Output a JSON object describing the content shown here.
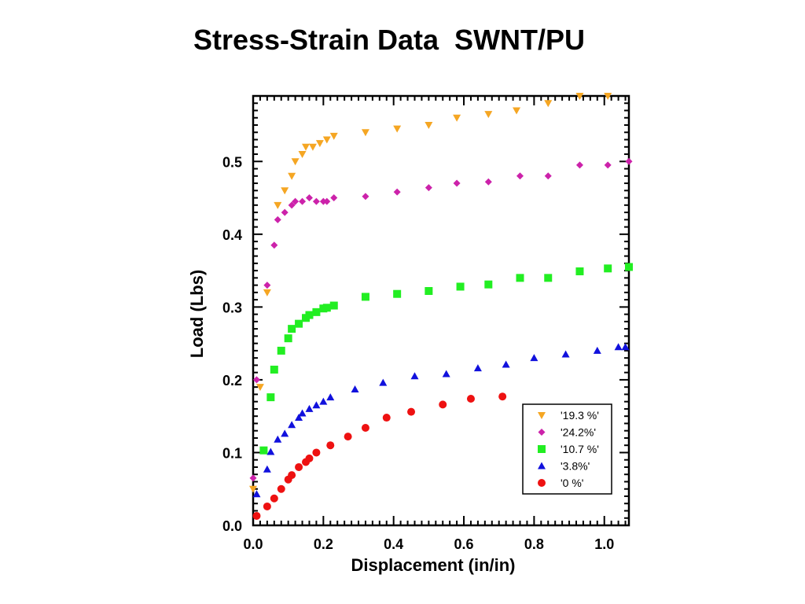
{
  "chart_data": {
    "type": "scatter",
    "title": "Stress-Strain Data  SWNT/PU",
    "xlabel": "Displacement (in/in)",
    "ylabel": "Load (Lbs)",
    "xlim": [
      0.0,
      1.07
    ],
    "ylim": [
      0.0,
      0.59
    ],
    "xticks": [
      "0.0",
      "0.2",
      "0.4",
      "0.6",
      "0.8",
      "1.0"
    ],
    "xtick_values": [
      0.0,
      0.2,
      0.4,
      0.6,
      0.8,
      1.0
    ],
    "yticks": [
      "0.0",
      "0.1",
      "0.2",
      "0.3",
      "0.4",
      "0.5"
    ],
    "ytick_values": [
      0.0,
      0.1,
      0.2,
      0.3,
      0.4,
      0.5
    ],
    "grid": false,
    "legend_position": "bottom-right",
    "series": [
      {
        "name": "'19.3 %'",
        "marker": "triangle-down",
        "color": "#f5a623",
        "points": [
          [
            0.0,
            0.05
          ],
          [
            0.02,
            0.19
          ],
          [
            0.04,
            0.32
          ],
          [
            0.07,
            0.44
          ],
          [
            0.09,
            0.46
          ],
          [
            0.11,
            0.48
          ],
          [
            0.12,
            0.5
          ],
          [
            0.14,
            0.51
          ],
          [
            0.15,
            0.52
          ],
          [
            0.17,
            0.52
          ],
          [
            0.19,
            0.525
          ],
          [
            0.21,
            0.53
          ],
          [
            0.23,
            0.535
          ],
          [
            0.32,
            0.54
          ],
          [
            0.41,
            0.545
          ],
          [
            0.5,
            0.55
          ],
          [
            0.58,
            0.56
          ],
          [
            0.67,
            0.565
          ],
          [
            0.75,
            0.57
          ],
          [
            0.84,
            0.58
          ],
          [
            0.93,
            0.59
          ],
          [
            1.01,
            0.59
          ]
        ]
      },
      {
        "name": "'24.2%'",
        "marker": "diamond",
        "color": "#cc22aa",
        "points": [
          [
            0.0,
            0.065
          ],
          [
            0.01,
            0.2
          ],
          [
            0.04,
            0.33
          ],
          [
            0.06,
            0.385
          ],
          [
            0.07,
            0.42
          ],
          [
            0.09,
            0.43
          ],
          [
            0.11,
            0.44
          ],
          [
            0.12,
            0.445
          ],
          [
            0.14,
            0.445
          ],
          [
            0.16,
            0.45
          ],
          [
            0.18,
            0.445
          ],
          [
            0.2,
            0.445
          ],
          [
            0.21,
            0.445
          ],
          [
            0.23,
            0.45
          ],
          [
            0.32,
            0.452
          ],
          [
            0.41,
            0.458
          ],
          [
            0.5,
            0.464
          ],
          [
            0.58,
            0.47
          ],
          [
            0.67,
            0.472
          ],
          [
            0.76,
            0.48
          ],
          [
            0.84,
            0.48
          ],
          [
            0.93,
            0.495
          ],
          [
            1.01,
            0.495
          ],
          [
            1.07,
            0.5
          ]
        ]
      },
      {
        "name": "'10.7 %'",
        "marker": "square",
        "color": "#22ee22",
        "points": [
          [
            0.03,
            0.103
          ],
          [
            0.05,
            0.176
          ],
          [
            0.06,
            0.214
          ],
          [
            0.08,
            0.24
          ],
          [
            0.1,
            0.257
          ],
          [
            0.11,
            0.27
          ],
          [
            0.13,
            0.277
          ],
          [
            0.15,
            0.285
          ],
          [
            0.16,
            0.289
          ],
          [
            0.18,
            0.293
          ],
          [
            0.2,
            0.298
          ],
          [
            0.21,
            0.299
          ],
          [
            0.23,
            0.302
          ],
          [
            0.32,
            0.314
          ],
          [
            0.41,
            0.318
          ],
          [
            0.5,
            0.322
          ],
          [
            0.59,
            0.328
          ],
          [
            0.67,
            0.331
          ],
          [
            0.76,
            0.34
          ],
          [
            0.84,
            0.34
          ],
          [
            0.93,
            0.349
          ],
          [
            1.01,
            0.353
          ],
          [
            1.07,
            0.355
          ]
        ]
      },
      {
        "name": "'3.8%'",
        "marker": "triangle-up",
        "color": "#1111dd",
        "points": [
          [
            0.01,
            0.043
          ],
          [
            0.04,
            0.077
          ],
          [
            0.05,
            0.101
          ],
          [
            0.07,
            0.118
          ],
          [
            0.09,
            0.126
          ],
          [
            0.11,
            0.138
          ],
          [
            0.13,
            0.148
          ],
          [
            0.14,
            0.154
          ],
          [
            0.16,
            0.16
          ],
          [
            0.18,
            0.165
          ],
          [
            0.2,
            0.17
          ],
          [
            0.22,
            0.176
          ],
          [
            0.29,
            0.187
          ],
          [
            0.37,
            0.196
          ],
          [
            0.46,
            0.205
          ],
          [
            0.55,
            0.208
          ],
          [
            0.64,
            0.216
          ],
          [
            0.72,
            0.221
          ],
          [
            0.8,
            0.23
          ],
          [
            0.89,
            0.235
          ],
          [
            0.98,
            0.24
          ],
          [
            1.04,
            0.245
          ],
          [
            1.06,
            0.245
          ]
        ]
      },
      {
        "name": "'0 %'",
        "marker": "circle",
        "color": "#ee1111",
        "points": [
          [
            0.01,
            0.013
          ],
          [
            0.04,
            0.026
          ],
          [
            0.06,
            0.037
          ],
          [
            0.08,
            0.05
          ],
          [
            0.1,
            0.063
          ],
          [
            0.11,
            0.069
          ],
          [
            0.13,
            0.08
          ],
          [
            0.15,
            0.087
          ],
          [
            0.16,
            0.092
          ],
          [
            0.18,
            0.1
          ],
          [
            0.22,
            0.11
          ],
          [
            0.27,
            0.122
          ],
          [
            0.32,
            0.134
          ],
          [
            0.38,
            0.148
          ],
          [
            0.45,
            0.156
          ],
          [
            0.54,
            0.166
          ],
          [
            0.62,
            0.174
          ],
          [
            0.71,
            0.177
          ]
        ]
      }
    ]
  }
}
